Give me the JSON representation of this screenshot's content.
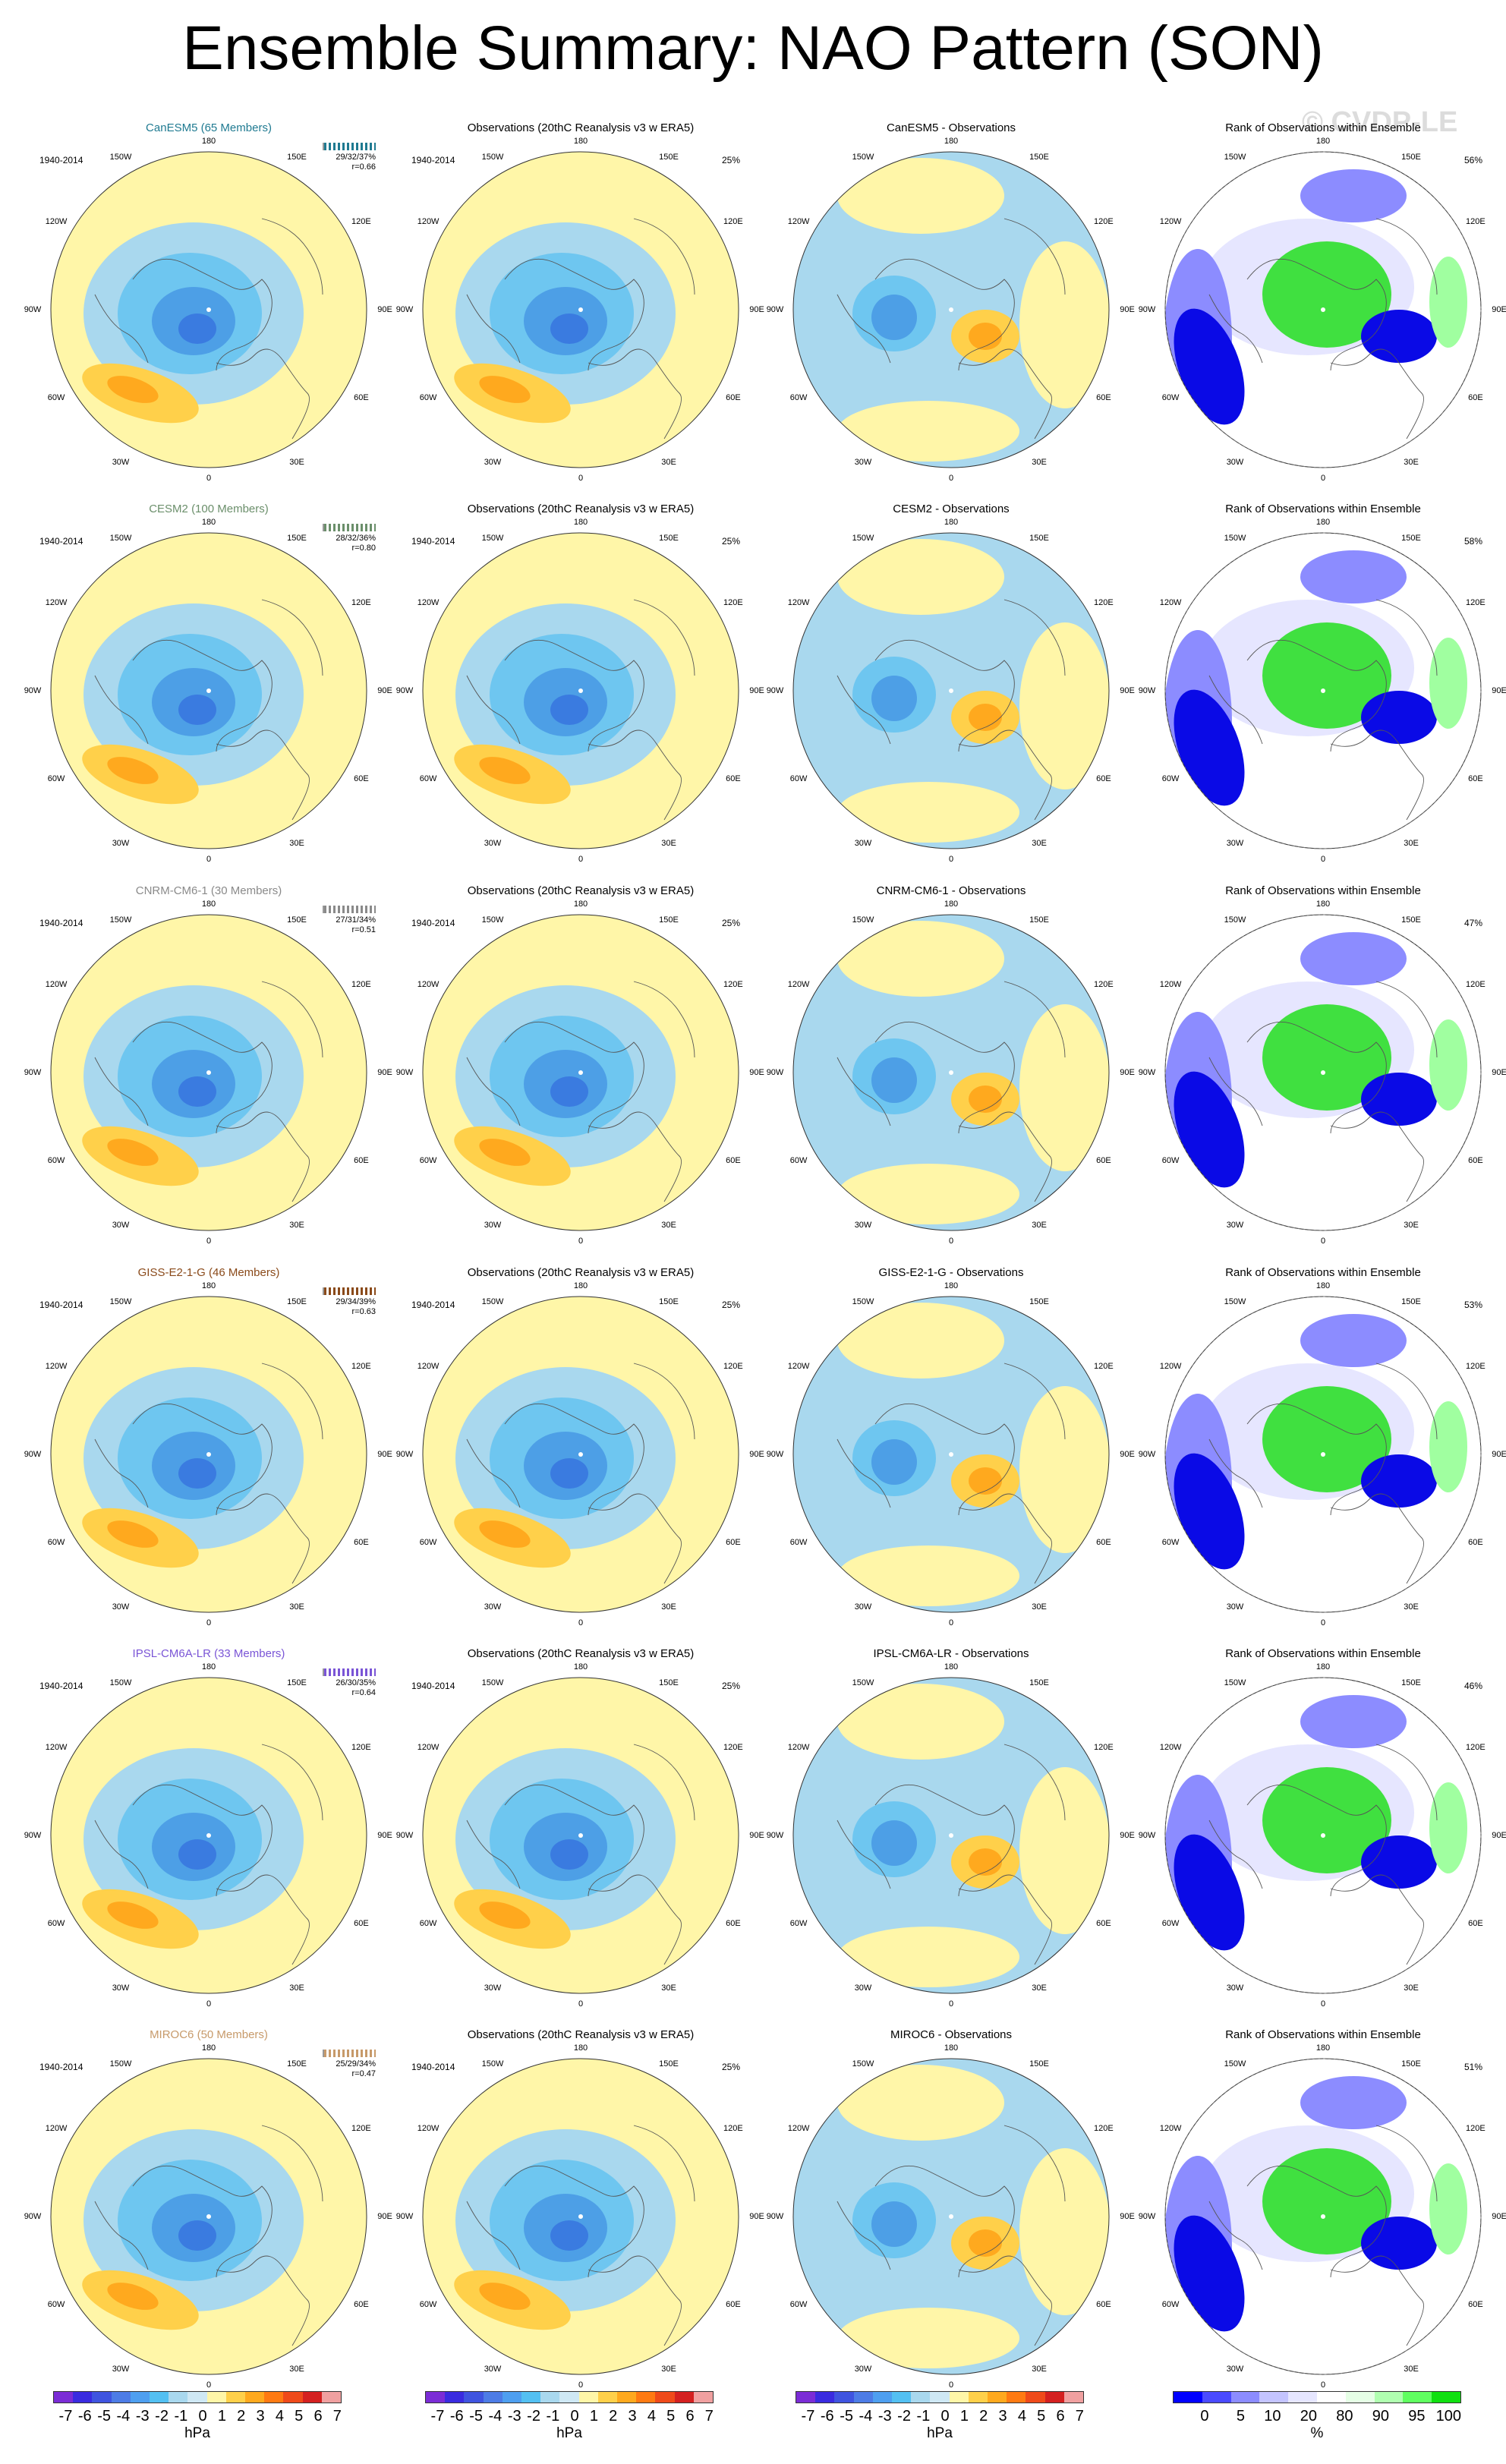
{
  "title": "Ensemble Summary: NAO Pattern (SON)",
  "watermark": "© CVDP-LE",
  "period": "1940-2014",
  "lon_labels": {
    "n": "180",
    "nw": "150W",
    "ne": "150E",
    "wnw": "120W",
    "ene": "120E",
    "w": "90W",
    "e": "90E",
    "wsw": "60W",
    "ese": "60E",
    "sw": "30W",
    "se": "30E",
    "s": "0"
  },
  "obs_title": "Observations (20thC Reanalysis v3 w ERA5)",
  "obs_pct": "25%",
  "rank_title": "Rank of Observations within Ensemble",
  "rows": [
    {
      "model_title": "CanESM5 (65 Members)",
      "color": "#1f7a91",
      "stats": "29/32/37%",
      "r": "r=0.66",
      "diff_title": "CanESM5 - Observations",
      "rank_pct": "56%"
    },
    {
      "model_title": "CESM2 (100 Members)",
      "color": "#6b8f6b",
      "stats": "28/32/36%",
      "r": "r=0.80",
      "diff_title": "CESM2 - Observations",
      "rank_pct": "58%"
    },
    {
      "model_title": "CNRM-CM6-1 (30 Members)",
      "color": "#8a8a8a",
      "stats": "27/31/34%",
      "r": "r=0.51",
      "diff_title": "CNRM-CM6-1 - Observations",
      "rank_pct": "47%"
    },
    {
      "model_title": "GISS-E2-1-G (46 Members)",
      "color": "#8a4a1a",
      "stats": "29/34/39%",
      "r": "r=0.63",
      "diff_title": "GISS-E2-1-G - Observations",
      "rank_pct": "53%"
    },
    {
      "model_title": "IPSL-CM6A-LR (33 Members)",
      "color": "#7a55d6",
      "stats": "26/30/35%",
      "r": "r=0.64",
      "diff_title": "IPSL-CM6A-LR - Observations",
      "rank_pct": "46%"
    },
    {
      "model_title": "MIROC6 (50 Members)",
      "color": "#c79a6a",
      "stats": "25/29/34%",
      "r": "r=0.47",
      "diff_title": "MIROC6 - Observations",
      "rank_pct": "51%"
    }
  ],
  "colorbar_hpa": {
    "ticks": [
      "-7",
      "-6",
      "-5",
      "-4",
      "-3",
      "-2",
      "-1",
      "0",
      "1",
      "2",
      "3",
      "4",
      "5",
      "6",
      "7"
    ],
    "colors": [
      "#7b2cd6",
      "#3a2be0",
      "#3f54e0",
      "#4d7ce6",
      "#4e9ff0",
      "#53c0f2",
      "#a9d8ee",
      "#cfe8f4",
      "#fff6a8",
      "#ffd04a",
      "#ffa91e",
      "#ff7a12",
      "#ef4a1a",
      "#d42020",
      "#f0a0a0"
    ],
    "units": "hPa"
  },
  "colorbar_pct": {
    "ticks": [
      "0",
      "5",
      "10",
      "20",
      "80",
      "90",
      "95",
      "100"
    ],
    "colors": [
      "#0000ff",
      "#4a4aff",
      "#8c8cff",
      "#c4c4ff",
      "#e6e6ff",
      "#ffffff",
      "#e6ffe6",
      "#b0ffb0",
      "#60ff60",
      "#10e010"
    ],
    "units": "%"
  }
}
